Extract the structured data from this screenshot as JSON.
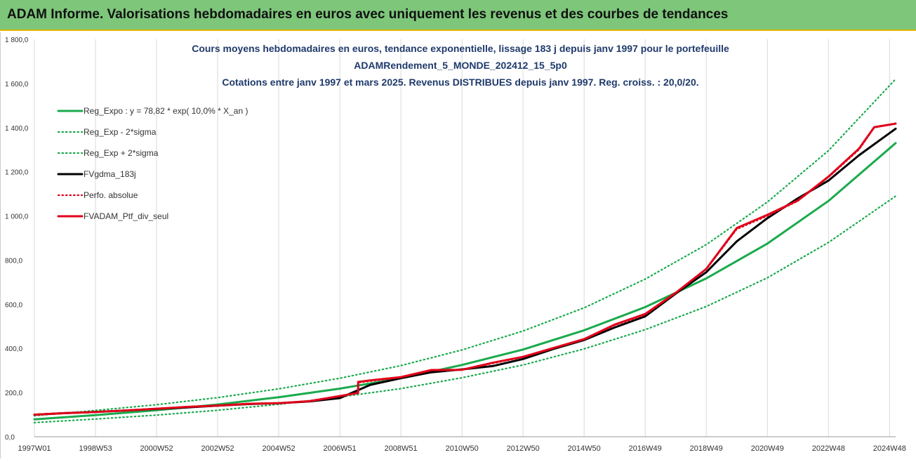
{
  "banner": {
    "title": "ADAM Informe. Valorisations hebdomadaires en euros avec uniquement les revenus et des courbes de tendances"
  },
  "chart_data": {
    "type": "line",
    "title_lines": [
      "Cours moyens hebdomadaires  en euros,  tendance exponentielle, lissage 183 j depuis janv 1997 pour le portefeuille",
      "ADAMRendement_5_MONDE_202412_15_5p0",
      "Cotations  entre janv 1997 et mars 2025. Revenus DISTRIBUES depuis janv 1997. Reg. croiss. : 20,0/20."
    ],
    "xlabel": "",
    "ylabel": "",
    "x_tick_labels": [
      "1997W01",
      "1998W53",
      "2000W52",
      "2002W52",
      "2004W52",
      "2006W51",
      "2008W51",
      "2010W50",
      "2012W50",
      "2014W50",
      "2016W49",
      "2018W49",
      "2020W49",
      "2022W48",
      "2024W48"
    ],
    "x_years": [
      1997,
      1999,
      2001,
      2003,
      2005,
      2007,
      2009,
      2011,
      2013,
      2015,
      2017,
      2019,
      2021,
      2023,
      2025
    ],
    "x_range": [
      1997.0,
      2025.2
    ],
    "y_tick_labels": [
      "0,0",
      "200,0",
      "400,0",
      "600,0",
      "800,0",
      "1 000,0",
      "1 200,0",
      "1 400,0",
      "1 600,0",
      "1 800,0"
    ],
    "y_ticks": [
      0,
      200,
      400,
      600,
      800,
      1000,
      1200,
      1400,
      1600,
      1800
    ],
    "ylim": [
      0,
      1800
    ],
    "grid": "vertical",
    "legend_position": "top-left",
    "series": [
      {
        "name": "Reg_Expo : y = 78,82 * exp( 10,0% *  X_an )",
        "color": "#1aaa4c",
        "style": "solid",
        "x": [
          1997,
          1999,
          2001,
          2003,
          2005,
          2007,
          2009,
          2011,
          2013,
          2015,
          2017,
          2019,
          2021,
          2023,
          2025.2
        ],
        "values": [
          79,
          98,
          120,
          146,
          179,
          218,
          265,
          325,
          395,
          482,
          587,
          717,
          875,
          1068,
          1330
        ]
      },
      {
        "name": "Reg_Exp - 2*sigma",
        "color": "#1aaa4c",
        "style": "dotted",
        "x": [
          1997,
          1999,
          2001,
          2003,
          2005,
          2007,
          2009,
          2011,
          2013,
          2015,
          2017,
          2019,
          2021,
          2023,
          2025.2
        ],
        "values": [
          64,
          80,
          98,
          120,
          147,
          180,
          218,
          267,
          325,
          398,
          485,
          590,
          720,
          880,
          1090
        ]
      },
      {
        "name": "Reg_Exp + 2*sigma",
        "color": "#1aaa4c",
        "style": "dotted",
        "x": [
          1997,
          1999,
          2001,
          2003,
          2005,
          2007,
          2009,
          2011,
          2013,
          2015,
          2017,
          2019,
          2021,
          2023,
          2025.2
        ],
        "values": [
          95,
          119,
          145,
          177,
          217,
          265,
          322,
          393,
          479,
          584,
          714,
          870,
          1063,
          1296,
          1620
        ]
      },
      {
        "name": "FVgdma_183j",
        "color": "#000000",
        "style": "solid",
        "x": [
          1997,
          1998,
          1999,
          2000,
          2001,
          2002,
          2003,
          2004,
          2005,
          2006,
          2007,
          2008,
          2009,
          2010,
          2011,
          2012,
          2013,
          2014,
          2015,
          2016,
          2017,
          2018,
          2019,
          2020,
          2021,
          2022,
          2023,
          2024,
          2025.2
        ],
        "values": [
          100,
          107,
          112,
          119,
          126,
          133,
          141,
          148,
          152,
          160,
          175,
          235,
          265,
          292,
          305,
          320,
          352,
          398,
          438,
          495,
          545,
          648,
          745,
          885,
          990,
          1080,
          1160,
          1275,
          1395
        ]
      },
      {
        "name": "Perfo. absolue",
        "color": "#e0001a",
        "style": "dotted",
        "x": [
          1997,
          1998,
          1999,
          2000,
          2001,
          2002,
          2003,
          2004,
          2005,
          2006,
          2007,
          2007.6,
          2007.6,
          2008,
          2009,
          2010,
          2011,
          2012,
          2013,
          2014,
          2015,
          2016,
          2017,
          2018,
          2019,
          2020,
          2021,
          2022,
          2023,
          2024,
          2024.5,
          2025.2
        ],
        "values": [
          101,
          108,
          113,
          120,
          128,
          136,
          142,
          150,
          153,
          162,
          185,
          200,
          245,
          252,
          268,
          300,
          302,
          332,
          360,
          400,
          440,
          505,
          552,
          650,
          758,
          940,
          1000,
          1068,
          1175,
          1300,
          1400,
          1420
        ]
      },
      {
        "name": "FVADAM_Ptf_div_seul",
        "color": "#e0001a",
        "style": "solid",
        "x": [
          1997,
          1998,
          1999,
          2000,
          2001,
          2002,
          2003,
          2004,
          2005,
          2006,
          2007,
          2007.6,
          2007.6,
          2008,
          2009,
          2010,
          2011,
          2012,
          2013,
          2014,
          2015,
          2016,
          2017,
          2018,
          2019,
          2020,
          2021,
          2022,
          2023,
          2024,
          2024.5,
          2025.2
        ],
        "values": [
          100,
          107,
          112,
          119,
          127,
          135,
          141,
          149,
          152,
          161,
          184,
          198,
          248,
          255,
          270,
          302,
          303,
          335,
          362,
          402,
          442,
          508,
          556,
          652,
          760,
          945,
          1005,
          1070,
          1178,
          1305,
          1402,
          1418
        ]
      }
    ]
  }
}
